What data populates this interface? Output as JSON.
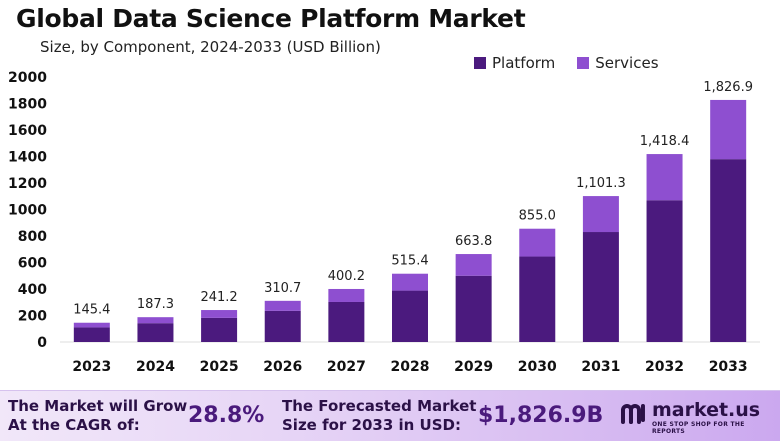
{
  "chart_data": {
    "type": "bar",
    "stacked": true,
    "title": "Global Data Science Platform Market",
    "subtitle": "Size, by Component, 2024-2033 (USD Billion)",
    "categories": [
      "2023",
      "2024",
      "2025",
      "2026",
      "2027",
      "2028",
      "2029",
      "2030",
      "2031",
      "2032",
      "2033"
    ],
    "series": [
      {
        "name": "Platform",
        "color": "#4b1a7e",
        "values": [
          110,
          142,
          182,
          235,
          302,
          388,
          500,
          645,
          830,
          1070,
          1380
        ]
      },
      {
        "name": "Services",
        "color": "#8e4fd0",
        "values": [
          35.4,
          45.3,
          59.2,
          75.7,
          98.2,
          127.4,
          163.8,
          210.0,
          271.3,
          348.4,
          446.9
        ]
      }
    ],
    "totals": [
      145.4,
      187.3,
      241.2,
      310.7,
      400.2,
      515.4,
      663.8,
      855.0,
      1101.3,
      1418.4,
      1826.9
    ],
    "total_labels": [
      "145.4",
      "187.3",
      "241.2",
      "310.7",
      "400.2",
      "515.4",
      "663.8",
      "855.0",
      "1,101.3",
      "1,418.4",
      "1,826.9"
    ],
    "yticks": [
      0,
      200,
      400,
      600,
      800,
      1000,
      1200,
      1400,
      1600,
      1800,
      2000
    ],
    "ylim": [
      0,
      2000
    ],
    "xlabel": "",
    "ylabel": "",
    "legend_position": "top-right",
    "grid": false
  },
  "footer": {
    "cagr_label_line1": "The Market will Grow",
    "cagr_label_line2": "At the CAGR of:",
    "cagr_value": "28.8%",
    "forecast_label_line1": "The Forecasted Market",
    "forecast_label_line2": "Size for 2033 in USD:",
    "forecast_value": "$1,826.9B",
    "brand_name": "market.us",
    "brand_tagline": "ONE STOP SHOP FOR THE REPORTS"
  }
}
